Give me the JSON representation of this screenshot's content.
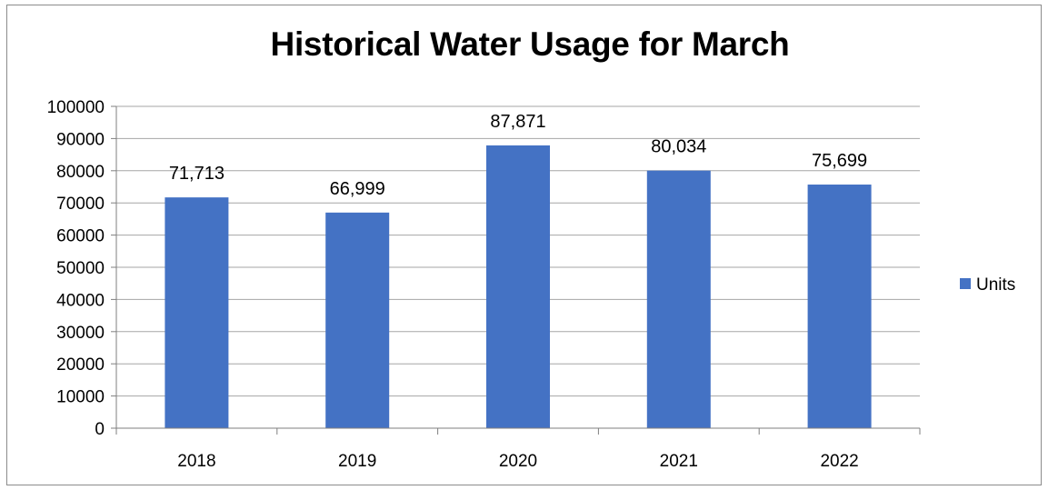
{
  "chart_data": {
    "type": "bar",
    "title": "Historical Water Usage for March",
    "categories": [
      "2018",
      "2019",
      "2020",
      "2021",
      "2022"
    ],
    "series": [
      {
        "name": "Units",
        "values": [
          71713,
          66999,
          87871,
          80034,
          75699
        ],
        "labels": [
          "71,713",
          "66,999",
          "87,871",
          "80,034",
          "75,699"
        ],
        "color": "#4472c4"
      }
    ],
    "xlabel": "",
    "ylabel": "",
    "ylim": [
      0,
      100000
    ],
    "yticks": [
      "0",
      "10000",
      "20000",
      "30000",
      "40000",
      "50000",
      "60000",
      "70000",
      "80000",
      "90000",
      "100000"
    ],
    "grid": true,
    "legend": "right"
  }
}
